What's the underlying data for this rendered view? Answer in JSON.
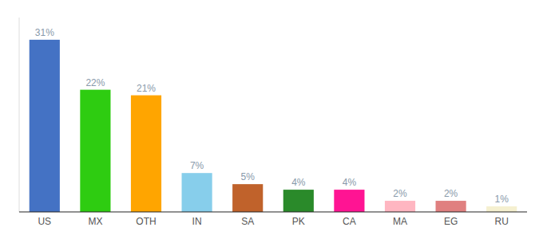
{
  "chart_data": {
    "type": "bar",
    "categories": [
      "US",
      "MX",
      "OTH",
      "IN",
      "SA",
      "PK",
      "CA",
      "MA",
      "EG",
      "RU"
    ],
    "values": [
      31,
      22,
      21,
      7,
      5,
      4,
      4,
      2,
      2,
      1
    ],
    "value_labels": [
      "31%",
      "22%",
      "21%",
      "7%",
      "5%",
      "4%",
      "4%",
      "2%",
      "2%",
      "1%"
    ],
    "colors": [
      "#4472c4",
      "#2ecc11",
      "#ffa500",
      "#87ceeb",
      "#c0622b",
      "#2a8a2a",
      "#ff1493",
      "#ffb6c1",
      "#e08080",
      "#f5f0d0"
    ],
    "ylim": [
      0,
      35
    ],
    "grid": false,
    "data_labels": true,
    "tick_labels": "x"
  }
}
